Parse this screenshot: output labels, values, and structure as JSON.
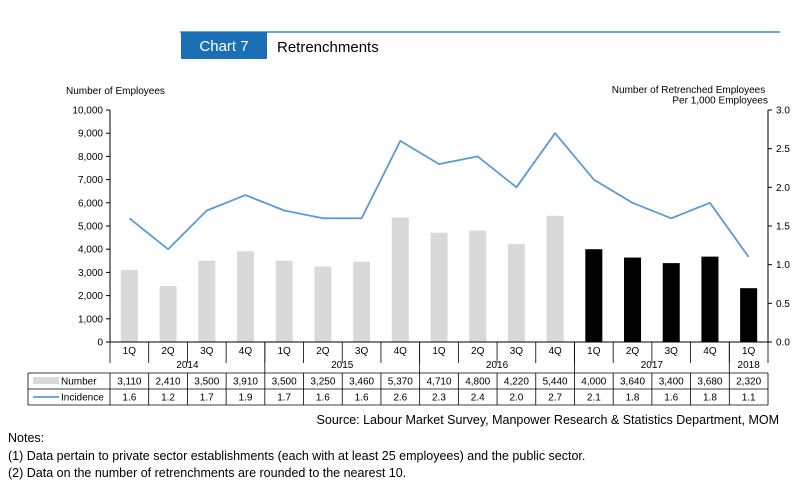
{
  "header": {
    "chart_label": "Chart 7",
    "title": "Retrenchments"
  },
  "source": "Source: Labour Market Survey, Manpower Research & Statistics Department, MOM",
  "notes": {
    "heading": "Notes:",
    "items": [
      "(1)  Data pertain to private sector establishments (each with at least 25 employees) and the public sector.",
      "(2)  Data on the number of retrenchments are rounded to the nearest 10."
    ]
  },
  "colors": {
    "accent": "#1a6fb5",
    "bar_before_2017": "#d9d9d9",
    "bar_from_2017": "#000000",
    "line": "#5b9bd5"
  },
  "chart_data": {
    "type": "bar",
    "title": "Retrenchments",
    "ylabel_left": "Number of Employees",
    "ylabel_right": "Number of Retrenched Employees Per 1,000 Employees",
    "ylim_left": [
      0,
      10000
    ],
    "ylim_right": [
      0,
      3.0
    ],
    "yticks_left": [
      "0",
      "1,000",
      "2,000",
      "3,000",
      "4,000",
      "5,000",
      "6,000",
      "7,000",
      "8,000",
      "9,000",
      "10,000"
    ],
    "yticks_right": [
      "0.0",
      "0.5",
      "1.0",
      "1.5",
      "2.0",
      "2.5",
      "3.0"
    ],
    "categories": [
      "1Q",
      "2Q",
      "3Q",
      "4Q",
      "1Q",
      "2Q",
      "3Q",
      "4Q",
      "1Q",
      "2Q",
      "3Q",
      "4Q",
      "1Q",
      "2Q",
      "3Q",
      "4Q",
      "1Q"
    ],
    "years": [
      {
        "label": "2014",
        "quarters": 4
      },
      {
        "label": "2015",
        "quarters": 4
      },
      {
        "label": "2016",
        "quarters": 4
      },
      {
        "label": "2017",
        "quarters": 4
      },
      {
        "label": "2018",
        "quarters": 1
      }
    ],
    "series": [
      {
        "name": "Number",
        "type": "bar",
        "axis": "left",
        "values": [
          3110,
          2410,
          3500,
          3910,
          3500,
          3250,
          3460,
          5370,
          4710,
          4800,
          4220,
          5440,
          4000,
          3640,
          3400,
          3680,
          2320
        ],
        "labels": [
          "3,110",
          "2,410",
          "3,500",
          "3,910",
          "3,500",
          "3,250",
          "3,460",
          "5,370",
          "4,710",
          "4,800",
          "4,220",
          "5,440",
          "4,000",
          "3,640",
          "3,400",
          "3,680",
          "2,320"
        ]
      },
      {
        "name": "Incidence",
        "type": "line",
        "axis": "right",
        "values": [
          1.6,
          1.2,
          1.7,
          1.9,
          1.7,
          1.6,
          1.6,
          2.6,
          2.3,
          2.4,
          2.0,
          2.7,
          2.1,
          1.8,
          1.6,
          1.8,
          1.1
        ],
        "labels": [
          "1.6",
          "1.2",
          "1.7",
          "1.9",
          "1.7",
          "1.6",
          "1.6",
          "2.6",
          "2.3",
          "2.4",
          "2.0",
          "2.7",
          "2.1",
          "1.8",
          "1.6",
          "1.8",
          "1.1"
        ]
      }
    ],
    "legend_placement": "data table below x-axis",
    "grid": false
  }
}
